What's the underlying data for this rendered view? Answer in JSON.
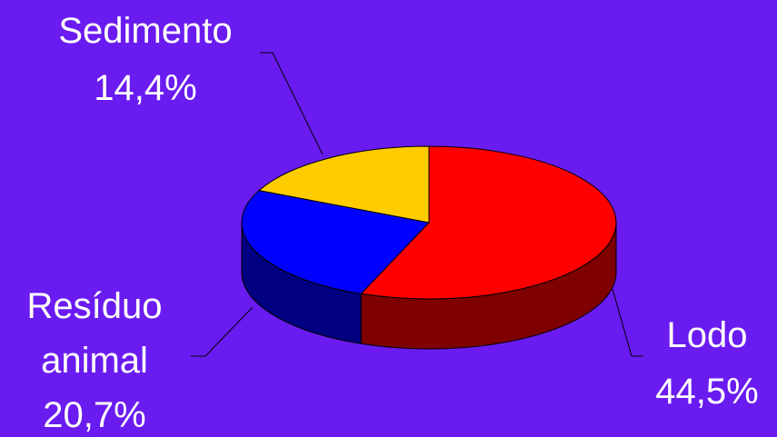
{
  "chart_data": {
    "type": "pie",
    "style": "3d",
    "slices": [
      {
        "name": "Lodo",
        "value_label": "44,5%",
        "value": 44.5,
        "color": "#ff0000",
        "side_color": "#7f0000"
      },
      {
        "name": "Resíduo animal",
        "value_label": "20,7%",
        "value": 20.7,
        "color": "#0000ff",
        "side_color": "#000080"
      },
      {
        "name": "Sedimento",
        "value_label": "14,4%",
        "value": 14.4,
        "color": "#ffcc00",
        "side_color": "#806600"
      }
    ],
    "background": "#6a1bf0",
    "label_color": "#ffffff"
  },
  "labels": {
    "sedimento_name": "Sedimento",
    "sedimento_pct": "14,4%",
    "residuo_line1": "Resíduo",
    "residuo_line2": "animal",
    "residuo_pct": "20,7%",
    "lodo_name": "Lodo",
    "lodo_pct": "44,5%"
  }
}
